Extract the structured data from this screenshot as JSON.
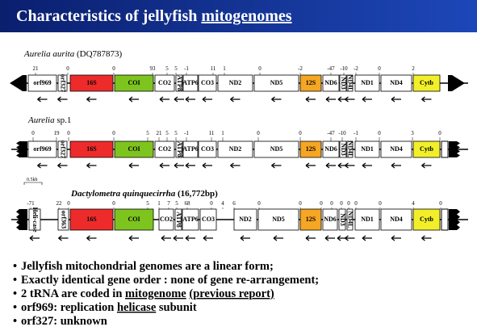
{
  "header": {
    "title": [
      "Characteristics of jellyfish ",
      "mitogenomes"
    ]
  },
  "scale": "0.5kb",
  "tracks": [
    {
      "name": "Aurelia aurita",
      "suffix": " (DQ787873)",
      "genes": [
        {
          "label": "orf969"
        },
        {
          "label": "orf327"
        },
        {
          "label": "16S",
          "color": "#ee2b2b"
        },
        {
          "label": "COI",
          "color": "#7ec41e"
        },
        {
          "label": "CO2"
        },
        {
          "label": "ATP8"
        },
        {
          "label": "ATP6"
        },
        {
          "label": "CO3"
        },
        {
          "label": "ND2"
        },
        {
          "label": "ND5"
        },
        {
          "label": "12S",
          "color": "#f5a623"
        },
        {
          "label": "ND6"
        },
        {
          "label": "ND3"
        },
        {
          "label": "ND4L"
        },
        {
          "label": "ND1"
        },
        {
          "label": "ND4"
        },
        {
          "label": "Cytb",
          "color": "#f2ef2a"
        }
      ],
      "numbers": [
        "21",
        "0",
        "0",
        "93",
        "5",
        "5",
        "-1",
        "11",
        "1",
        "0",
        "-2",
        "-47",
        "-10",
        "-2",
        "0",
        "2"
      ]
    },
    {
      "name": "Aurelia",
      "suffix": " sp.1",
      "genes": [
        {
          "label": "orf969"
        },
        {
          "label": "orf327"
        },
        {
          "label": "16S",
          "color": "#ee2b2b"
        },
        {
          "label": "COI",
          "color": "#7ec41e"
        },
        {
          "label": "CO2"
        },
        {
          "label": "ATP8"
        },
        {
          "label": "ATP6"
        },
        {
          "label": "CO3"
        },
        {
          "label": "ND2"
        },
        {
          "label": "ND5"
        },
        {
          "label": "12S",
          "color": "#f5a623"
        },
        {
          "label": "ND6"
        },
        {
          "label": "ND3"
        },
        {
          "label": "ND4L"
        },
        {
          "label": "ND1"
        },
        {
          "label": "ND4"
        },
        {
          "label": "Cytb",
          "color": "#f2ef2a"
        }
      ],
      "numbers": [
        "0",
        "19",
        "0",
        "0",
        "5",
        "21",
        "5",
        "5",
        "-1",
        "11",
        "1",
        "0",
        "0",
        "-47",
        "-10",
        "-1",
        "0",
        "3",
        "0"
      ]
    },
    {
      "name": "Dactylometra quinquecirrha",
      "suffix": " (16,772bp)",
      "genes": [
        {
          "label": "Heli-case"
        },
        {
          "label": "orf363"
        },
        {
          "label": "16S",
          "color": "#ee2b2b"
        },
        {
          "label": "COI",
          "color": "#7ec41e"
        },
        {
          "label": "CO2"
        },
        {
          "label": "ATP8"
        },
        {
          "label": "ATP6"
        },
        {
          "label": "CO3"
        },
        {
          "label": "ND2"
        },
        {
          "label": "ND5"
        },
        {
          "label": "12S",
          "color": "#f5a623"
        },
        {
          "label": "ND6"
        },
        {
          "label": "ND3"
        },
        {
          "label": "ND4L"
        },
        {
          "label": "ND1"
        },
        {
          "label": "ND4"
        },
        {
          "label": "Cytb",
          "color": "#f2ef2a"
        }
      ],
      "numbers": [
        "-71",
        "22",
        "0",
        "0",
        "5",
        "1",
        "7",
        "5",
        "68",
        "0",
        "4",
        "6",
        "0",
        "0",
        "0",
        "0",
        "0",
        "0",
        "0",
        "0",
        "4",
        "0"
      ]
    }
  ],
  "bullets": [
    [
      "Jellyfish mitochondrial genomes are a linear form;"
    ],
    [
      "Exactly identical gene order : none of gene re-arrangement;"
    ],
    [
      "2 tRNA are coded in ",
      "mitogenome",
      " ",
      "(previous report)"
    ],
    [
      "orf969:  replication ",
      "helicase",
      " subunit"
    ],
    [
      "orf327: unknown"
    ]
  ]
}
